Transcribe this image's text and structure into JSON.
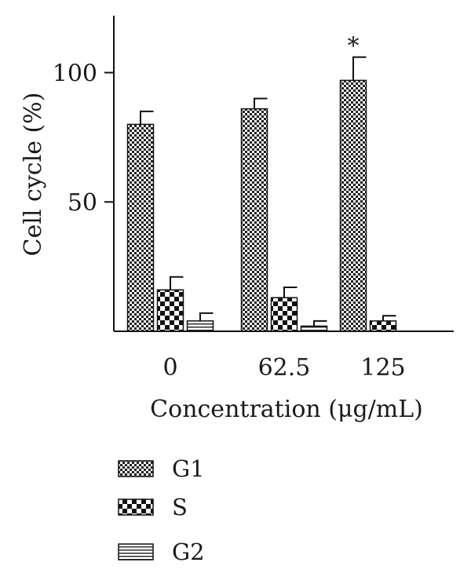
{
  "chart_data": {
    "type": "bar",
    "title": "",
    "xlabel": "Concentration (μg/mL)",
    "ylabel": "Cell cycle (%)",
    "categories": [
      "0",
      "62.5",
      "125"
    ],
    "yticks": [
      "50",
      "100"
    ],
    "ylim": [
      0,
      122
    ],
    "grid": false,
    "legend_position": "bottom-left",
    "series": [
      {
        "name": "G1",
        "pattern": "fine-checker",
        "values": [
          80,
          86,
          97
        ],
        "errors": [
          5,
          4,
          9
        ]
      },
      {
        "name": "S",
        "pattern": "coarse-checker",
        "values": [
          16,
          13,
          4
        ],
        "errors": [
          5,
          4,
          2
        ]
      },
      {
        "name": "G2",
        "pattern": "horizontal-lines",
        "values": [
          4,
          2,
          null
        ],
        "errors": [
          3,
          2,
          null
        ]
      }
    ],
    "annotations": [
      {
        "text": "*",
        "category": "125",
        "series": "G1"
      }
    ]
  }
}
